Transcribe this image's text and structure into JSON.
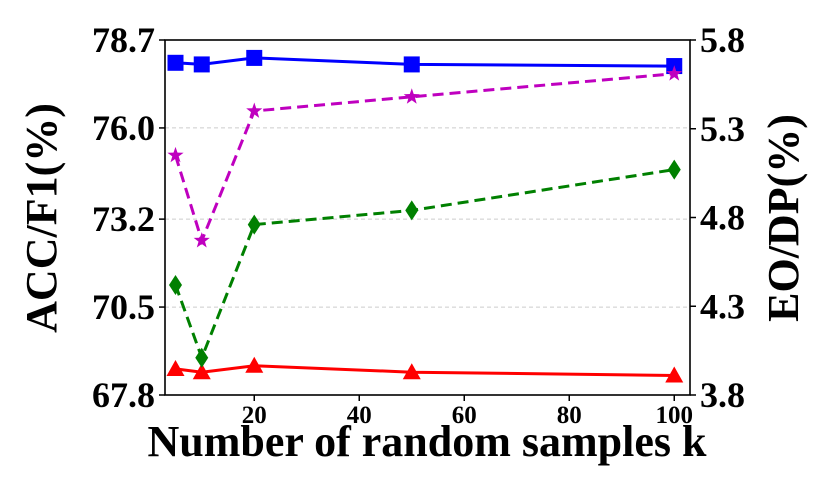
{
  "chart_data": {
    "type": "line",
    "title": "",
    "xlabel": "Number of random samples k",
    "ylabel_left": "ACC/F1(%)",
    "ylabel_right": "EO/DP(%)",
    "x": [
      5,
      10,
      20,
      50,
      100
    ],
    "xlim": [
      3,
      103
    ],
    "xticks": [
      "20",
      "40",
      "60",
      "80",
      "100"
    ],
    "ylim_left": [
      67.8,
      78.7
    ],
    "ylim_right": [
      3.8,
      5.8
    ],
    "yticks_left": [
      "67.8",
      "70.5",
      "73.2",
      "76.0",
      "78.7"
    ],
    "yticks_right": [
      "3.8",
      "4.3",
      "4.8",
      "5.3",
      "5.8"
    ],
    "grid": "horizontal",
    "series": [
      {
        "axis": "left",
        "color": "#0000ff",
        "marker": "square",
        "dash": "solid",
        "values": [
          78.0,
          77.95,
          78.15,
          77.95,
          77.9
        ]
      },
      {
        "axis": "left",
        "color": "#ff0000",
        "marker": "triangle",
        "dash": "solid",
        "values": [
          68.6,
          68.5,
          68.7,
          68.5,
          68.4
        ]
      },
      {
        "axis": "right",
        "color": "#bf00bf",
        "marker": "star",
        "dash": "dashed",
        "values": [
          5.15,
          4.67,
          5.4,
          5.48,
          5.61
        ]
      },
      {
        "axis": "right",
        "color": "#008000",
        "marker": "diamond",
        "dash": "dashed",
        "values": [
          4.42,
          4.01,
          4.76,
          4.84,
          5.07
        ]
      }
    ]
  }
}
